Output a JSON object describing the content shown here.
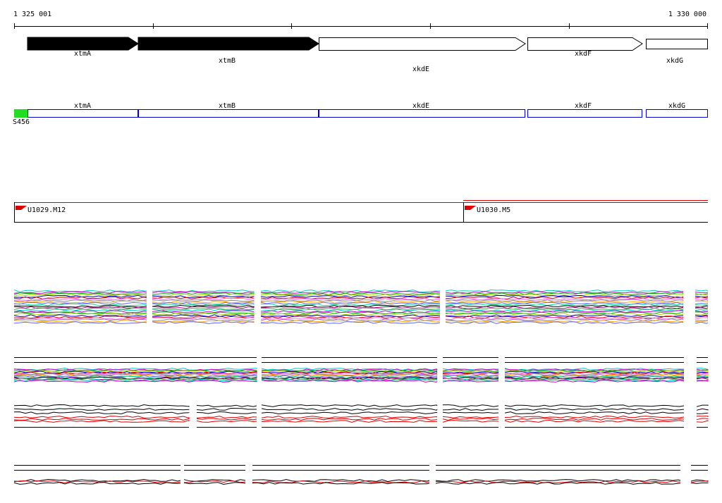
{
  "ruler": {
    "start": "1 325 001",
    "end": "1 330 000"
  },
  "genes": [
    {
      "label": "xtmA"
    },
    {
      "label": "xtmB"
    },
    {
      "label": "xkdE"
    },
    {
      "label": "xkdF"
    },
    {
      "label": "xkdG"
    }
  ],
  "features": {
    "labels": [
      "xtmA",
      "xtmB",
      "xkdE",
      "xkdF",
      "xkdG"
    ],
    "marker": "S456"
  },
  "regions": [
    {
      "label": "U1029.M12"
    },
    {
      "label": "U1030.M5"
    }
  ]
}
